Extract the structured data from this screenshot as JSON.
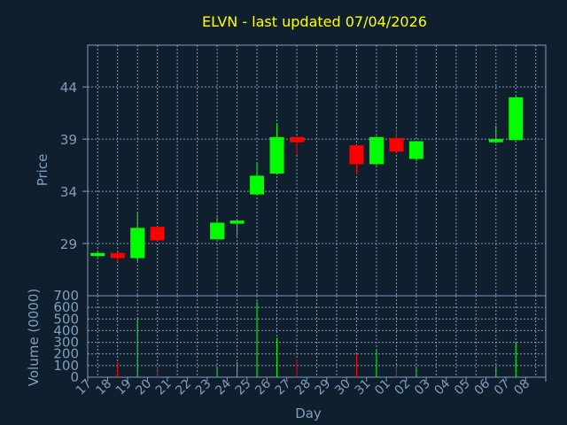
{
  "chart_data": {
    "type": "candlestick",
    "title": "ELVN - last updated 07/04/2026",
    "xlabel": "Day",
    "ylabel_price": "Price",
    "ylabel_volume": "Volume (0000)",
    "price_ylim": [
      24,
      48
    ],
    "price_ticks": [
      "29",
      "34",
      "39",
      "44"
    ],
    "volume_ylim": [
      0,
      700
    ],
    "volume_ticks": [
      "0",
      "100",
      "200",
      "300",
      "400",
      "500",
      "600",
      "700"
    ],
    "x_ticks": [
      "17",
      "18",
      "19",
      "20",
      "21",
      "22",
      "23",
      "24",
      "25",
      "26",
      "27",
      "28",
      "29",
      "30",
      "31",
      "01",
      "02",
      "03",
      "04",
      "05",
      "06",
      "07",
      "08"
    ],
    "grid": true,
    "colors": {
      "up": "#00ff00",
      "down": "#ff0000",
      "background": "#0f1f2e",
      "title": "#ffff00",
      "axis_text": "#7f9fbf"
    },
    "candles": [
      {
        "i": 0,
        "open": 27.8,
        "close": 28.1,
        "high": 28.2,
        "low": 27.7,
        "volume": 0
      },
      {
        "i": 1,
        "open": 28.1,
        "close": 27.6,
        "high": 28.2,
        "low": 27.2,
        "volume": 130
      },
      {
        "i": 2,
        "open": 27.6,
        "close": 30.5,
        "high": 32.0,
        "low": 27.3,
        "volume": 500
      },
      {
        "i": 3,
        "open": 30.6,
        "close": 29.3,
        "high": 30.6,
        "low": 29.2,
        "volume": 90
      },
      {
        "i": 6,
        "open": 29.4,
        "close": 31.0,
        "high": 31.5,
        "low": 29.4,
        "volume": 90
      },
      {
        "i": 7,
        "open": 30.9,
        "close": 31.2,
        "high": 31.3,
        "low": 29.7,
        "volume": 130
      },
      {
        "i": 8,
        "open": 33.7,
        "close": 35.5,
        "high": 36.8,
        "low": 33.6,
        "volume": 650
      },
      {
        "i": 9,
        "open": 35.7,
        "close": 39.2,
        "high": 40.5,
        "low": 35.6,
        "volume": 340
      },
      {
        "i": 10,
        "open": 39.2,
        "close": 38.7,
        "high": 39.3,
        "low": 37.5,
        "volume": 150
      },
      {
        "i": 13,
        "open": 38.4,
        "close": 36.6,
        "high": 38.4,
        "low": 35.6,
        "volume": 200
      },
      {
        "i": 14,
        "open": 36.6,
        "close": 39.2,
        "high": 39.3,
        "low": 36.5,
        "volume": 230
      },
      {
        "i": 15,
        "open": 39.1,
        "close": 37.8,
        "high": 40.0,
        "low": 37.7,
        "volume": 90
      },
      {
        "i": 16,
        "open": 37.1,
        "close": 38.8,
        "high": 38.8,
        "low": 36.9,
        "volume": 90
      },
      {
        "i": 20,
        "open": 38.7,
        "close": 39.0,
        "high": 40.3,
        "low": 38.6,
        "volume": 90
      },
      {
        "i": 21,
        "open": 38.9,
        "close": 43.0,
        "high": 43.1,
        "low": 38.9,
        "volume": 300
      }
    ]
  }
}
